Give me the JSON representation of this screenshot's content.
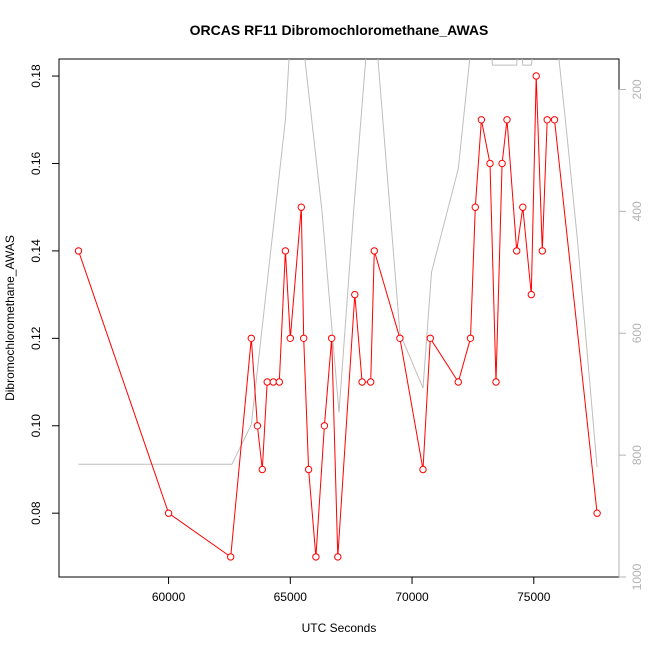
{
  "chart_data": {
    "type": "line",
    "title": "ORCAS RF11 Dibromochloromethane_AWAS",
    "xlabel": "UTC Seconds",
    "ylabel": "Dibromochloromethane_AWAS",
    "xlim": [
      55500,
      78500
    ],
    "ylim": [
      0.0654,
      0.1839
    ],
    "x_ticks": [
      {
        "value": 60000,
        "label": "60000"
      },
      {
        "value": 65000,
        "label": "65000"
      },
      {
        "value": 70000,
        "label": "70000"
      },
      {
        "value": 75000,
        "label": "75000"
      }
    ],
    "y_ticks": [
      {
        "value": 0.08,
        "label": "0.08"
      },
      {
        "value": 0.1,
        "label": "0.10"
      },
      {
        "value": 0.12,
        "label": "0.12"
      },
      {
        "value": 0.14,
        "label": "0.14"
      },
      {
        "value": 0.16,
        "label": "0.16"
      },
      {
        "value": 0.18,
        "label": "0.18"
      }
    ],
    "y2lim": [
      1000,
      150
    ],
    "y2_ticks": [
      {
        "value": 200,
        "label": "200"
      },
      {
        "value": 400,
        "label": "400"
      },
      {
        "value": 600,
        "label": "600"
      },
      {
        "value": 800,
        "label": "800"
      },
      {
        "value": 1000,
        "label": "1000"
      }
    ],
    "grid": false,
    "series": [
      {
        "color": "#ff0000",
        "marker": "open-circle",
        "axis": "left",
        "x": [
          56300,
          60000,
          62550,
          63400,
          63650,
          63850,
          64050,
          64300,
          64550,
          64800,
          65000,
          65450,
          65550,
          65750,
          66050,
          66400,
          66700,
          66950,
          67650,
          67950,
          68300,
          68450,
          69500,
          70450,
          70750,
          71900,
          72400,
          72600,
          72850,
          73200,
          73450,
          73700,
          73900,
          74300,
          74550,
          74900,
          75100,
          75350,
          75550,
          75850,
          77600
        ],
        "y": [
          0.14,
          0.08,
          0.07,
          0.12,
          0.1,
          0.09,
          0.11,
          0.11,
          0.11,
          0.14,
          0.12,
          0.15,
          0.12,
          0.09,
          0.07,
          0.1,
          0.12,
          0.07,
          0.13,
          0.11,
          0.11,
          0.14,
          0.12,
          0.09,
          0.12,
          0.11,
          0.12,
          0.15,
          0.17,
          0.16,
          0.11,
          0.16,
          0.17,
          0.14,
          0.15,
          0.13,
          0.18,
          0.14,
          0.17,
          0.17,
          0.08
        ]
      },
      {
        "color": "#bebebe",
        "marker": "none",
        "axis": "right",
        "x": [
          56300,
          62600,
          63400,
          64800,
          65000,
          65500,
          66300,
          67000,
          67600,
          68200,
          68500,
          69500,
          70450,
          70800,
          71900,
          72500,
          72800,
          73200,
          73300,
          73450,
          74300,
          74400,
          74550,
          74900,
          75100,
          75900,
          76300,
          76800,
          77600
        ],
        "y": [
          815,
          815,
          750,
          250,
          115,
          115,
          400,
          730,
          400,
          100,
          100,
          600,
          690,
          500,
          330,
          100,
          100,
          100,
          160,
          160,
          160,
          100,
          160,
          160,
          100,
          100,
          250,
          450,
          820
        ]
      }
    ]
  }
}
